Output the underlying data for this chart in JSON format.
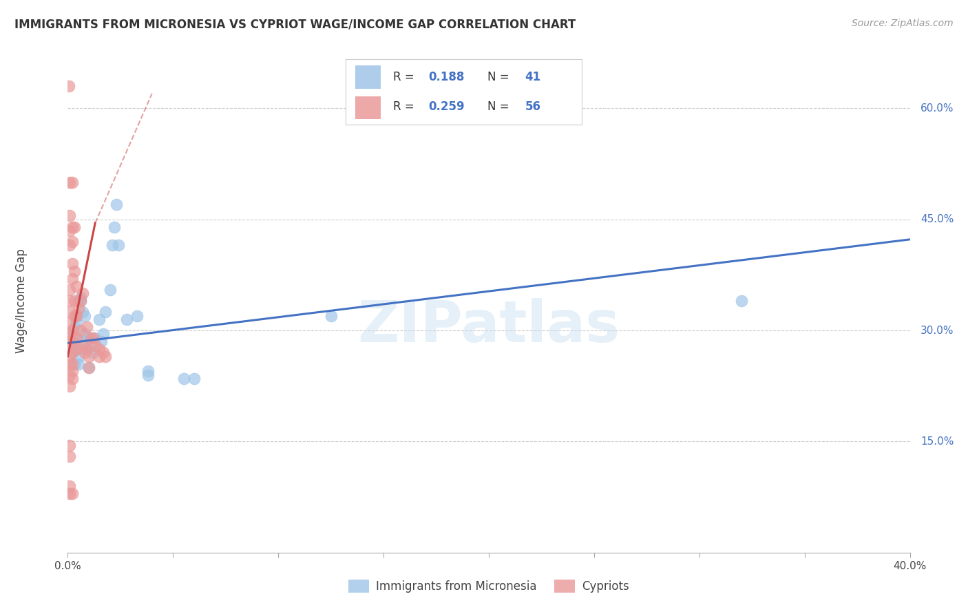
{
  "title": "IMMIGRANTS FROM MICRONESIA VS CYPRIOT WAGE/INCOME GAP CORRELATION CHART",
  "source": "Source: ZipAtlas.com",
  "ylabel": "Wage/Income Gap",
  "yticks": [
    "60.0%",
    "45.0%",
    "30.0%",
    "15.0%"
  ],
  "ytick_vals": [
    0.6,
    0.45,
    0.3,
    0.15
  ],
  "xmin": 0.0,
  "xmax": 0.4,
  "ymin": 0.0,
  "ymax": 0.68,
  "legend_R1": "0.188",
  "legend_N1": "41",
  "legend_R2": "0.259",
  "legend_N2": "56",
  "watermark": "ZIPatlas",
  "blue_color": "#9fc5e8",
  "pink_color": "#ea9999",
  "blue_line_color": "#4472c4",
  "pink_line_color": "#cc4444",
  "blue_scatter": [
    [
      0.001,
      0.295
    ],
    [
      0.002,
      0.27
    ],
    [
      0.003,
      0.255
    ],
    [
      0.002,
      0.28
    ],
    [
      0.003,
      0.305
    ],
    [
      0.003,
      0.29
    ],
    [
      0.004,
      0.32
    ],
    [
      0.004,
      0.31
    ],
    [
      0.005,
      0.265
    ],
    [
      0.005,
      0.255
    ],
    [
      0.005,
      0.34
    ],
    [
      0.006,
      0.345
    ],
    [
      0.005,
      0.275
    ],
    [
      0.006,
      0.34
    ],
    [
      0.007,
      0.325
    ],
    [
      0.007,
      0.285
    ],
    [
      0.008,
      0.295
    ],
    [
      0.008,
      0.32
    ],
    [
      0.009,
      0.275
    ],
    [
      0.01,
      0.25
    ],
    [
      0.01,
      0.29
    ],
    [
      0.011,
      0.28
    ],
    [
      0.012,
      0.27
    ],
    [
      0.013,
      0.29
    ],
    [
      0.015,
      0.315
    ],
    [
      0.016,
      0.285
    ],
    [
      0.017,
      0.295
    ],
    [
      0.018,
      0.325
    ],
    [
      0.02,
      0.355
    ],
    [
      0.021,
      0.415
    ],
    [
      0.022,
      0.44
    ],
    [
      0.023,
      0.47
    ],
    [
      0.024,
      0.415
    ],
    [
      0.028,
      0.315
    ],
    [
      0.033,
      0.32
    ],
    [
      0.038,
      0.24
    ],
    [
      0.038,
      0.245
    ],
    [
      0.055,
      0.235
    ],
    [
      0.06,
      0.235
    ],
    [
      0.125,
      0.32
    ],
    [
      0.32,
      0.34
    ]
  ],
  "pink_scatter": [
    [
      0.0005,
      0.63
    ],
    [
      0.001,
      0.5
    ],
    [
      0.001,
      0.455
    ],
    [
      0.001,
      0.435
    ],
    [
      0.001,
      0.415
    ],
    [
      0.002,
      0.44
    ],
    [
      0.002,
      0.42
    ],
    [
      0.002,
      0.39
    ],
    [
      0.002,
      0.37
    ],
    [
      0.001,
      0.355
    ],
    [
      0.001,
      0.34
    ],
    [
      0.001,
      0.325
    ],
    [
      0.001,
      0.31
    ],
    [
      0.001,
      0.295
    ],
    [
      0.001,
      0.285
    ],
    [
      0.002,
      0.3
    ],
    [
      0.002,
      0.285
    ],
    [
      0.002,
      0.27
    ],
    [
      0.002,
      0.255
    ],
    [
      0.001,
      0.265
    ],
    [
      0.001,
      0.255
    ],
    [
      0.002,
      0.245
    ],
    [
      0.002,
      0.235
    ],
    [
      0.001,
      0.24
    ],
    [
      0.001,
      0.225
    ],
    [
      0.001,
      0.145
    ],
    [
      0.001,
      0.13
    ],
    [
      0.003,
      0.44
    ],
    [
      0.003,
      0.38
    ],
    [
      0.003,
      0.34
    ],
    [
      0.003,
      0.32
    ],
    [
      0.004,
      0.36
    ],
    [
      0.004,
      0.32
    ],
    [
      0.004,
      0.29
    ],
    [
      0.004,
      0.275
    ],
    [
      0.005,
      0.33
    ],
    [
      0.006,
      0.34
    ],
    [
      0.006,
      0.3
    ],
    [
      0.007,
      0.35
    ],
    [
      0.007,
      0.28
    ],
    [
      0.008,
      0.27
    ],
    [
      0.009,
      0.305
    ],
    [
      0.009,
      0.275
    ],
    [
      0.01,
      0.265
    ],
    [
      0.01,
      0.25
    ],
    [
      0.011,
      0.29
    ],
    [
      0.012,
      0.29
    ],
    [
      0.013,
      0.28
    ],
    [
      0.015,
      0.275
    ],
    [
      0.015,
      0.265
    ],
    [
      0.017,
      0.27
    ],
    [
      0.018,
      0.265
    ],
    [
      0.002,
      0.08
    ],
    [
      0.001,
      0.08
    ],
    [
      0.001,
      0.09
    ],
    [
      0.002,
      0.5
    ]
  ],
  "blue_trendline_solid": [
    [
      0.0,
      0.283
    ],
    [
      0.4,
      0.423
    ]
  ],
  "pink_trendline_solid": [
    [
      0.0,
      0.265
    ],
    [
      0.013,
      0.445
    ]
  ],
  "pink_trendline_dashed": [
    [
      0.013,
      0.445
    ],
    [
      0.04,
      0.62
    ]
  ]
}
